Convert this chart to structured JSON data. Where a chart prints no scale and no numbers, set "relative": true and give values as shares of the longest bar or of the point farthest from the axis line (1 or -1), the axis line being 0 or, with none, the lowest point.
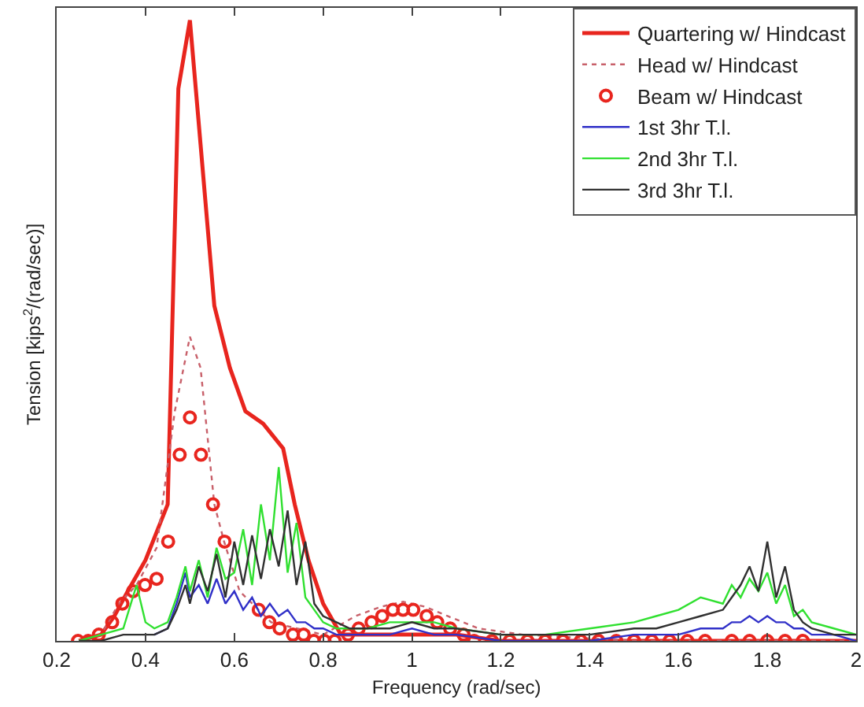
{
  "chart_data": {
    "type": "line",
    "relative": true,
    "xlabel": "Frequency (rad/sec)",
    "ylabel": "Tension [kips$^{2}$/(rad/sec)]",
    "xlim": [
      0.2,
      2
    ],
    "xticks": [
      0.2,
      0.4,
      0.6,
      0.8,
      1,
      1.2,
      1.4,
      1.6,
      1.8,
      2
    ],
    "tick_labels": "x",
    "legend": "top right",
    "grid": false,
    "series": [
      {
        "name": "Quartering w/ Hindcast",
        "color": "#e8251e",
        "line_style": "solid",
        "x": [
          0.25,
          0.3,
          0.33,
          0.36,
          0.4,
          0.45,
          0.474,
          0.5,
          0.524,
          0.555,
          0.59,
          0.625,
          0.665,
          0.71,
          0.736,
          0.767,
          0.8,
          0.84,
          0.9,
          1.0,
          1.1,
          1.2,
          1.5,
          2.0
        ],
        "values": [
          0,
          0.01,
          0.04,
          0.08,
          0.13,
          0.22,
          0.89,
          1,
          0.8,
          0.54,
          0.44,
          0.37,
          0.35,
          0.31,
          0.22,
          0.13,
          0.06,
          0.01,
          0.01,
          0.01,
          0.01,
          0,
          0,
          0
        ]
      },
      {
        "name": "Head w/ Hindcast",
        "color": "#c8606a",
        "line_style": "dotted",
        "x": [
          0.25,
          0.3,
          0.34,
          0.38,
          0.425,
          0.466,
          0.5,
          0.524,
          0.555,
          0.577,
          0.612,
          0.683,
          0.8,
          0.873,
          0.93,
          0.98,
          1.03,
          1.08,
          1.15,
          1.25,
          1.5,
          2.0
        ],
        "values": [
          0,
          0.01,
          0.06,
          0.09,
          0.15,
          0.37,
          0.49,
          0.44,
          0.22,
          0.16,
          0.08,
          0.03,
          0.01,
          0.04,
          0.055,
          0.063,
          0.055,
          0.04,
          0.02,
          0.01,
          0,
          0
        ]
      },
      {
        "name": "Beam w/ Hindcast",
        "type": "scatter",
        "marker": "circle",
        "color": "#e8251e",
        "x": [
          0.248,
          0.271,
          0.295,
          0.325,
          0.348,
          0.372,
          0.399,
          0.425,
          0.451,
          0.477,
          0.5,
          0.525,
          0.552,
          0.578,
          0.655,
          0.679,
          0.702,
          0.732,
          0.756,
          0.779,
          0.803,
          0.826,
          0.856,
          0.88,
          0.909,
          0.933,
          0.957,
          0.98,
          1.003,
          1.033,
          1.057,
          1.086,
          1.116,
          1.14,
          1.18,
          1.22,
          1.26,
          1.3,
          1.34,
          1.38,
          1.42,
          1.46,
          1.5,
          1.54,
          1.58,
          1.62,
          1.66,
          1.72,
          1.76,
          1.8,
          1.84,
          1.88
        ],
        "values": [
          0,
          0,
          0.01,
          0.03,
          0.06,
          0.08,
          0.09,
          0.1,
          0.16,
          0.3,
          0.36,
          0.3,
          0.22,
          0.16,
          0.05,
          0.03,
          0.02,
          0.01,
          0.01,
          0,
          0,
          0,
          0.01,
          0.02,
          0.03,
          0.04,
          0.05,
          0.05,
          0.05,
          0.04,
          0.03,
          0.02,
          0.01,
          0,
          0,
          0,
          0,
          0,
          0,
          0,
          0,
          0,
          0,
          0,
          0,
          0,
          0,
          0,
          0,
          0,
          0,
          0
        ]
      },
      {
        "name": "1st 3hr T.l.",
        "color": "#3030c8",
        "line_style": "solid",
        "x": [
          0.42,
          0.45,
          0.47,
          0.49,
          0.5,
          0.52,
          0.54,
          0.56,
          0.58,
          0.6,
          0.62,
          0.64,
          0.66,
          0.68,
          0.7,
          0.72,
          0.74,
          0.76,
          0.78,
          0.8,
          0.83,
          0.86,
          0.9,
          0.95,
          1.0,
          1.05,
          1.1,
          1.2,
          1.3,
          1.4,
          1.5,
          1.55,
          1.6,
          1.65,
          1.7,
          1.72,
          1.74,
          1.76,
          1.78,
          1.8,
          1.82,
          1.84,
          1.86,
          1.88,
          1.9,
          1.95,
          2.0
        ],
        "values": [
          0.01,
          0.02,
          0.06,
          0.11,
          0.07,
          0.09,
          0.06,
          0.1,
          0.06,
          0.08,
          0.05,
          0.07,
          0.04,
          0.06,
          0.04,
          0.05,
          0.03,
          0.03,
          0.02,
          0.02,
          0.01,
          0.01,
          0.01,
          0.01,
          0.02,
          0.01,
          0.01,
          0,
          0,
          0,
          0.01,
          0.01,
          0.01,
          0.02,
          0.02,
          0.03,
          0.03,
          0.04,
          0.03,
          0.04,
          0.03,
          0.03,
          0.02,
          0.02,
          0.01,
          0.01,
          0
        ]
      },
      {
        "name": "2nd 3hr T.l.",
        "color": "#30e030",
        "line_style": "solid",
        "x": [
          0.25,
          0.3,
          0.35,
          0.38,
          0.4,
          0.42,
          0.45,
          0.47,
          0.49,
          0.5,
          0.52,
          0.54,
          0.56,
          0.58,
          0.6,
          0.62,
          0.64,
          0.66,
          0.68,
          0.7,
          0.72,
          0.74,
          0.76,
          0.78,
          0.8,
          0.83,
          0.86,
          0.9,
          0.95,
          1.0,
          1.05,
          1.1,
          1.2,
          1.3,
          1.4,
          1.5,
          1.55,
          1.6,
          1.65,
          1.7,
          1.72,
          1.74,
          1.76,
          1.78,
          1.8,
          1.82,
          1.84,
          1.86,
          1.88,
          1.9,
          1.95,
          2.0
        ],
        "values": [
          0,
          0.01,
          0.02,
          0.09,
          0.03,
          0.02,
          0.03,
          0.07,
          0.12,
          0.08,
          0.13,
          0.07,
          0.15,
          0.1,
          0.11,
          0.18,
          0.09,
          0.22,
          0.13,
          0.28,
          0.11,
          0.19,
          0.07,
          0.05,
          0.03,
          0.02,
          0.02,
          0.02,
          0.03,
          0.03,
          0.03,
          0.02,
          0.01,
          0.01,
          0.02,
          0.03,
          0.04,
          0.05,
          0.07,
          0.06,
          0.09,
          0.07,
          0.1,
          0.08,
          0.11,
          0.06,
          0.09,
          0.04,
          0.05,
          0.03,
          0.02,
          0.01
        ]
      },
      {
        "name": "3rd 3hr T.l.",
        "color": "#303030",
        "line_style": "solid",
        "x": [
          0.25,
          0.3,
          0.35,
          0.38,
          0.4,
          0.42,
          0.45,
          0.47,
          0.49,
          0.5,
          0.52,
          0.54,
          0.56,
          0.58,
          0.6,
          0.62,
          0.64,
          0.66,
          0.68,
          0.7,
          0.72,
          0.74,
          0.76,
          0.78,
          0.8,
          0.83,
          0.86,
          0.9,
          0.95,
          1.0,
          1.05,
          1.1,
          1.2,
          1.3,
          1.4,
          1.5,
          1.55,
          1.6,
          1.65,
          1.7,
          1.72,
          1.74,
          1.76,
          1.78,
          1.8,
          1.82,
          1.84,
          1.86,
          1.88,
          1.9,
          1.95,
          2.0
        ],
        "values": [
          0,
          0,
          0.01,
          0.01,
          0.01,
          0.01,
          0.02,
          0.05,
          0.09,
          0.06,
          0.12,
          0.08,
          0.14,
          0.07,
          0.16,
          0.09,
          0.17,
          0.1,
          0.18,
          0.12,
          0.21,
          0.09,
          0.16,
          0.06,
          0.04,
          0.03,
          0.02,
          0.02,
          0.02,
          0.03,
          0.02,
          0.02,
          0.01,
          0.01,
          0.01,
          0.02,
          0.02,
          0.03,
          0.04,
          0.05,
          0.07,
          0.09,
          0.12,
          0.08,
          0.16,
          0.07,
          0.12,
          0.05,
          0.03,
          0.02,
          0.01,
          0.01
        ]
      }
    ]
  }
}
